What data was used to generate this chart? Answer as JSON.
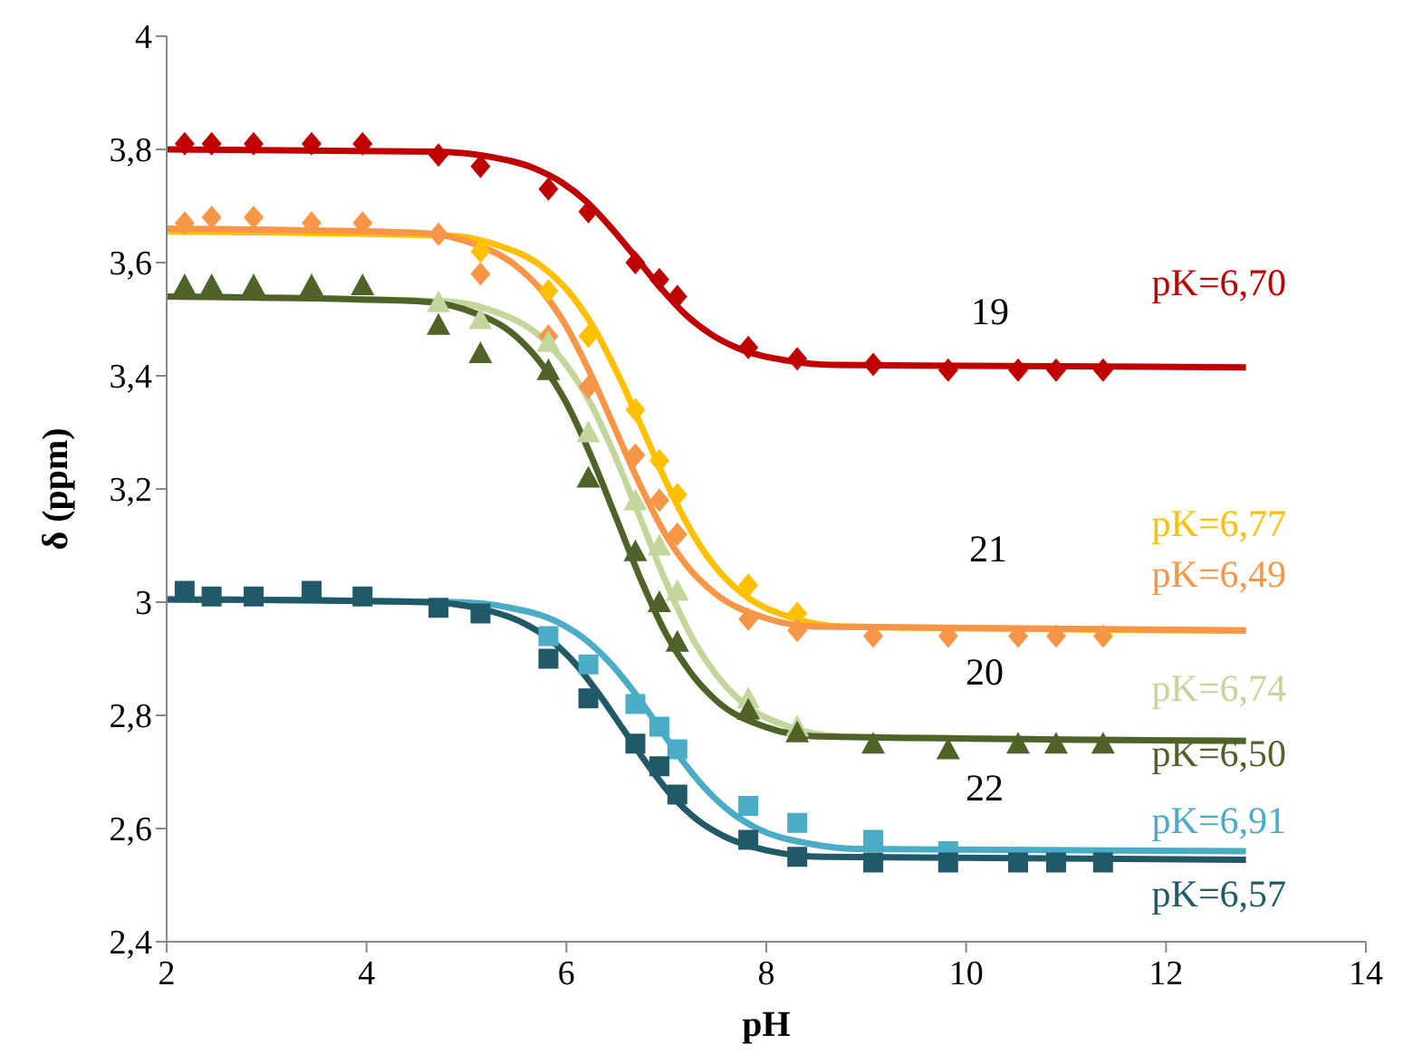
{
  "chart_data": {
    "type": "scatter",
    "xlabel": "pH",
    "ylabel": "δ (ppm)",
    "grid": false,
    "legend": false,
    "xlim": [
      2,
      14
    ],
    "xticks": [
      2,
      4,
      6,
      8,
      10,
      12,
      14
    ],
    "ylim": [
      2.4,
      4
    ],
    "yticks": [
      {
        "value": 2.4,
        "label": "2,4"
      },
      {
        "value": 2.6,
        "label": "2,6"
      },
      {
        "value": 2.8,
        "label": "2,8"
      },
      {
        "value": 3,
        "label": "3"
      },
      {
        "value": 3.2,
        "label": "3,2"
      },
      {
        "value": 3.4,
        "label": "3,4"
      },
      {
        "value": 3.6,
        "label": "3,6"
      },
      {
        "value": 3.8,
        "label": "3,8"
      },
      {
        "value": 4,
        "label": "4"
      }
    ],
    "annotations": [
      "19",
      "21",
      "20",
      "22"
    ],
    "series": [
      {
        "marker": "diamond",
        "color": "#c00000",
        "x": [
          2.18,
          2.45,
          2.87,
          3.45,
          3.96,
          4.72,
          5.14,
          5.82,
          6.22,
          6.69,
          6.93,
          7.11,
          7.82,
          8.31,
          9.07,
          9.82,
          10.52,
          10.9,
          11.37
        ],
        "values": [
          3.81,
          3.81,
          3.81,
          3.81,
          3.81,
          3.79,
          3.77,
          3.73,
          3.69,
          3.6,
          3.57,
          3.54,
          3.45,
          3.43,
          3.42,
          3.41,
          3.41,
          3.41,
          3.41
        ]
      },
      {
        "marker": "diamond",
        "color": "#ffc000",
        "x": [
          5.14,
          5.82,
          6.22,
          6.69,
          6.93,
          7.11,
          7.82,
          8.31
        ],
        "values": [
          3.62,
          3.55,
          3.47,
          3.34,
          3.25,
          3.19,
          3.03,
          2.98
        ]
      },
      {
        "marker": "diamond",
        "color": "#f79646",
        "x": [
          2.18,
          2.45,
          2.87,
          3.45,
          3.96,
          4.72,
          5.14,
          5.82,
          6.22,
          6.69,
          6.93,
          7.11,
          7.82,
          8.31,
          9.07,
          9.82,
          10.52,
          10.9,
          11.37
        ],
        "values": [
          3.67,
          3.68,
          3.68,
          3.67,
          3.67,
          3.65,
          3.58,
          3.47,
          3.38,
          3.26,
          3.18,
          3.12,
          2.97,
          2.95,
          2.94,
          2.94,
          2.94,
          2.94,
          2.94
        ]
      },
      {
        "marker": "triangle",
        "color": "#c3d69b",
        "x": [
          4.72,
          5.14,
          5.82,
          6.22,
          6.69,
          6.93,
          7.11,
          7.82,
          8.31
        ],
        "values": [
          3.53,
          3.5,
          3.46,
          3.3,
          3.18,
          3.1,
          3.02,
          2.83,
          2.78
        ]
      },
      {
        "marker": "triangle",
        "color": "#4f6228",
        "x": [
          2.18,
          2.45,
          2.87,
          3.45,
          3.96,
          4.72,
          5.14,
          5.82,
          6.22,
          6.69,
          6.93,
          7.11,
          7.82,
          8.31,
          9.07,
          9.82,
          10.52,
          10.9,
          11.37
        ],
        "values": [
          3.56,
          3.56,
          3.56,
          3.56,
          3.56,
          3.49,
          3.44,
          3.41,
          3.22,
          3.09,
          3.0,
          2.93,
          2.81,
          2.77,
          2.75,
          2.74,
          2.75,
          2.75,
          2.75
        ]
      },
      {
        "marker": "square",
        "color": "#4bacc6",
        "x": [
          5.82,
          6.22,
          6.69,
          6.93,
          7.11,
          7.82,
          8.31,
          9.07,
          9.82
        ],
        "values": [
          2.94,
          2.89,
          2.82,
          2.78,
          2.74,
          2.64,
          2.61,
          2.58,
          2.56
        ]
      },
      {
        "marker": "square",
        "color": "#215968",
        "x": [
          2.18,
          2.45,
          2.87,
          3.45,
          3.96,
          4.72,
          5.14,
          5.82,
          6.22,
          6.69,
          6.93,
          7.11,
          7.82,
          8.31,
          9.07,
          9.82,
          10.52,
          10.9,
          11.37
        ],
        "values": [
          3.02,
          3.01,
          3.01,
          3.02,
          3.01,
          2.99,
          2.98,
          2.9,
          2.83,
          2.75,
          2.71,
          2.66,
          2.58,
          2.55,
          2.54,
          2.54,
          2.54,
          2.54,
          2.54
        ]
      },
      {
        "type": "line",
        "name": "pK=6,70",
        "color": "#c00000",
        "marker": "none",
        "x": [
          2,
          4.7,
          5.2,
          5.7,
          5.95,
          6.2,
          6.45,
          6.7,
          6.95,
          7.2,
          7.45,
          7.7,
          8.2,
          8.7,
          12.8
        ],
        "values": [
          3.8,
          3.796,
          3.788,
          3.765,
          3.742,
          3.708,
          3.661,
          3.608,
          3.554,
          3.507,
          3.473,
          3.45,
          3.427,
          3.419,
          3.415
        ]
      },
      {
        "type": "line",
        "name": "pK=6,77",
        "color": "#ffc000",
        "marker": "none",
        "x": [
          2,
          4.77,
          5.27,
          5.77,
          6.02,
          6.27,
          6.52,
          6.77,
          7.02,
          7.27,
          7.52,
          7.77,
          8.27,
          8.77,
          12.8
        ],
        "values": [
          3.655,
          3.648,
          3.633,
          3.591,
          3.549,
          3.486,
          3.401,
          3.303,
          3.204,
          3.119,
          3.056,
          3.014,
          2.972,
          2.957,
          2.95
        ]
      },
      {
        "type": "line",
        "name": "pK=6,49",
        "color": "#f79646",
        "marker": "none",
        "x": [
          2,
          4.49,
          4.99,
          5.49,
          5.74,
          5.99,
          6.24,
          6.49,
          6.74,
          6.99,
          7.24,
          7.49,
          7.99,
          8.49,
          12.8
        ],
        "values": [
          3.66,
          3.653,
          3.638,
          3.595,
          3.553,
          3.49,
          3.404,
          3.305,
          3.206,
          3.12,
          3.057,
          3.015,
          2.972,
          2.957,
          2.95
        ]
      },
      {
        "type": "line",
        "name": "pK=6,74",
        "color": "#c3d69b",
        "marker": "none",
        "x": [
          2,
          4.74,
          5.24,
          5.74,
          5.99,
          6.24,
          6.49,
          6.74,
          6.99,
          7.24,
          7.49,
          7.74,
          8.24,
          8.74,
          12.8
        ],
        "values": [
          3.54,
          3.532,
          3.516,
          3.469,
          3.421,
          3.352,
          3.257,
          3.148,
          3.038,
          2.943,
          2.874,
          2.826,
          2.779,
          2.763,
          2.755
        ]
      },
      {
        "type": "line",
        "name": "pK=6,50",
        "color": "#4f6228",
        "marker": "none",
        "x": [
          2,
          4.5,
          5.0,
          5.5,
          5.75,
          6.0,
          6.25,
          6.5,
          6.75,
          7.0,
          7.25,
          7.5,
          8.0,
          8.5,
          12.8
        ],
        "values": [
          3.54,
          3.532,
          3.516,
          3.469,
          3.421,
          3.352,
          3.257,
          3.148,
          3.038,
          2.943,
          2.874,
          2.826,
          2.779,
          2.763,
          2.755
        ]
      },
      {
        "type": "line",
        "name": "pK=6,91",
        "color": "#4bacc6",
        "marker": "none",
        "x": [
          2,
          4.91,
          5.41,
          5.91,
          6.16,
          6.41,
          6.66,
          6.91,
          7.16,
          7.41,
          7.66,
          7.91,
          8.41,
          8.91,
          12.8
        ],
        "values": [
          3.005,
          3.0,
          2.991,
          2.965,
          2.938,
          2.898,
          2.845,
          2.783,
          2.72,
          2.667,
          2.627,
          2.6,
          2.574,
          2.564,
          2.56
        ]
      },
      {
        "type": "line",
        "name": "pK=6,57",
        "color": "#215968",
        "marker": "none",
        "x": [
          2,
          4.57,
          5.07,
          5.57,
          5.82,
          6.07,
          6.32,
          6.57,
          6.82,
          7.07,
          7.32,
          7.57,
          8.07,
          8.57,
          12.8
        ],
        "values": [
          3.005,
          3.0,
          2.991,
          2.963,
          2.936,
          2.895,
          2.839,
          2.775,
          2.711,
          2.655,
          2.614,
          2.587,
          2.559,
          2.55,
          2.545
        ]
      }
    ]
  }
}
